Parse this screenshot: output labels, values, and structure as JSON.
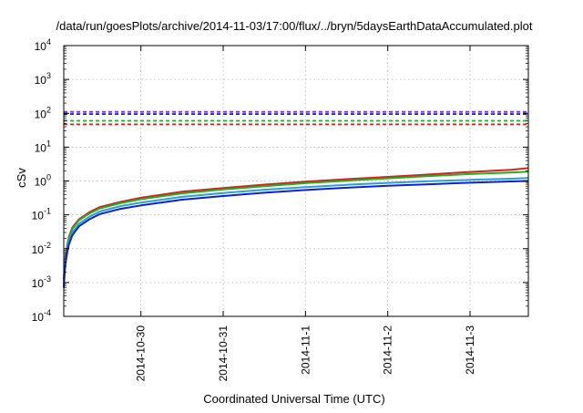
{
  "chart_data": {
    "type": "line",
    "title": "/data/run/goesPlots/archive/2014-11-03/17:00/flux/../bryn/5daysEarthDataAccumulated.plot",
    "xlabel": "Coordinated Universal Time (UTC)",
    "ylabel": "cSv",
    "y_scale": "log",
    "ylim": [
      0.0001,
      10000
    ],
    "y_ticks": [
      {
        "base": "10",
        "exp": "-4"
      },
      {
        "base": "10",
        "exp": "-3"
      },
      {
        "base": "10",
        "exp": "-2"
      },
      {
        "base": "10",
        "exp": "-1"
      },
      {
        "base": "10",
        "exp": "0"
      },
      {
        "base": "10",
        "exp": "1"
      },
      {
        "base": "10",
        "exp": "2"
      },
      {
        "base": "10",
        "exp": "3"
      },
      {
        "base": "10",
        "exp": "4"
      }
    ],
    "xlim": [
      "2014-10-29T01:30",
      "2014-11-03T17:00"
    ],
    "x_ticks": [
      "2014-10-30",
      "2014-10-31",
      "2014-11-1",
      "2014-11-2",
      "2014-11-3"
    ],
    "x_tick_dates": [
      "2014-10-30T00:00",
      "2014-10-31T00:00",
      "2014-11-01T00:00",
      "2014-11-02T00:00",
      "2014-11-03T00:00"
    ],
    "grid": true,
    "series": [
      {
        "color": "#d62020",
        "style": "solid",
        "x": [
          "2014-10-29T01:30",
          "2014-10-29T01:45",
          "2014-10-29T02:00",
          "2014-10-29T02:30",
          "2014-10-29T03:00",
          "2014-10-29T04:00",
          "2014-10-29T06:00",
          "2014-10-29T09:00",
          "2014-10-29T12:00",
          "2014-10-29T18:00",
          "2014-10-30T00:00",
          "2014-10-30T12:00",
          "2014-10-31T00:00",
          "2014-10-31T12:00",
          "2014-11-01T00:00",
          "2014-11-01T12:00",
          "2014-11-02T00:00",
          "2014-11-02T12:00",
          "2014-11-03T00:00",
          "2014-11-03T12:00",
          "2014-11-03T17:00"
        ],
        "y": [
          0.0012,
          0.003,
          0.006,
          0.013,
          0.022,
          0.042,
          0.075,
          0.12,
          0.17,
          0.24,
          0.32,
          0.48,
          0.62,
          0.78,
          0.95,
          1.13,
          1.32,
          1.55,
          1.85,
          2.15,
          2.4
        ]
      },
      {
        "color": "#20b020",
        "style": "solid",
        "x": [
          "2014-10-29T01:30",
          "2014-10-29T01:45",
          "2014-10-29T02:00",
          "2014-10-29T02:30",
          "2014-10-29T03:00",
          "2014-10-29T04:00",
          "2014-10-29T06:00",
          "2014-10-29T09:00",
          "2014-10-29T12:00",
          "2014-10-29T18:00",
          "2014-10-30T00:00",
          "2014-10-30T12:00",
          "2014-10-31T00:00",
          "2014-10-31T12:00",
          "2014-11-01T00:00",
          "2014-11-01T12:00",
          "2014-11-02T00:00",
          "2014-11-02T12:00",
          "2014-11-03T00:00",
          "2014-11-03T12:00",
          "2014-11-03T17:00"
        ],
        "y": [
          0.0011,
          0.0028,
          0.0055,
          0.012,
          0.02,
          0.038,
          0.07,
          0.11,
          0.155,
          0.22,
          0.29,
          0.43,
          0.56,
          0.7,
          0.86,
          1.02,
          1.2,
          1.4,
          1.6,
          1.78,
          1.9
        ]
      },
      {
        "color": "#2a9de0",
        "style": "solid",
        "x": [
          "2014-10-29T01:30",
          "2014-10-29T01:45",
          "2014-10-29T02:00",
          "2014-10-29T02:30",
          "2014-10-29T03:00",
          "2014-10-29T04:00",
          "2014-10-29T06:00",
          "2014-10-29T09:00",
          "2014-10-29T12:00",
          "2014-10-29T18:00",
          "2014-10-30T00:00",
          "2014-10-30T12:00",
          "2014-10-31T00:00",
          "2014-10-31T12:00",
          "2014-11-01T00:00",
          "2014-11-01T12:00",
          "2014-11-02T00:00",
          "2014-11-02T12:00",
          "2014-11-03T00:00",
          "2014-11-03T12:00",
          "2014-11-03T17:00"
        ],
        "y": [
          0.0009,
          0.0022,
          0.0045,
          0.0095,
          0.016,
          0.03,
          0.055,
          0.088,
          0.125,
          0.18,
          0.23,
          0.34,
          0.44,
          0.55,
          0.66,
          0.77,
          0.88,
          0.98,
          1.08,
          1.17,
          1.22
        ]
      },
      {
        "color": "#1020d0",
        "style": "solid",
        "x": [
          "2014-10-29T01:30",
          "2014-10-29T01:45",
          "2014-10-29T02:00",
          "2014-10-29T02:30",
          "2014-10-29T03:00",
          "2014-10-29T04:00",
          "2014-10-29T06:00",
          "2014-10-29T09:00",
          "2014-10-29T12:00",
          "2014-10-29T18:00",
          "2014-10-30T00:00",
          "2014-10-30T12:00",
          "2014-10-31T00:00",
          "2014-10-31T12:00",
          "2014-11-01T00:00",
          "2014-11-01T12:00",
          "2014-11-02T00:00",
          "2014-11-02T12:00",
          "2014-11-03T00:00",
          "2014-11-03T12:00",
          "2014-11-03T17:00"
        ],
        "y": [
          0.0007,
          0.0018,
          0.0036,
          0.0078,
          0.013,
          0.025,
          0.046,
          0.074,
          0.105,
          0.15,
          0.19,
          0.28,
          0.36,
          0.45,
          0.54,
          0.63,
          0.72,
          0.8,
          0.89,
          0.97,
          1.0
        ]
      },
      {
        "color": "#8a2be2",
        "style": "dashed",
        "x": [
          "2014-10-29T01:30",
          "2014-11-03T17:00"
        ],
        "y": [
          110,
          110
        ]
      },
      {
        "color": "#1020d0",
        "style": "dashed",
        "x": [
          "2014-10-29T01:30",
          "2014-11-03T17:00"
        ],
        "y": [
          95,
          95
        ]
      },
      {
        "color": "#20b020",
        "style": "dashed",
        "x": [
          "2014-10-29T01:30",
          "2014-11-03T17:00"
        ],
        "y": [
          60,
          60
        ]
      },
      {
        "color": "#d62020",
        "style": "dashed",
        "x": [
          "2014-10-29T01:30",
          "2014-11-03T17:00"
        ],
        "y": [
          47,
          47
        ]
      }
    ]
  }
}
